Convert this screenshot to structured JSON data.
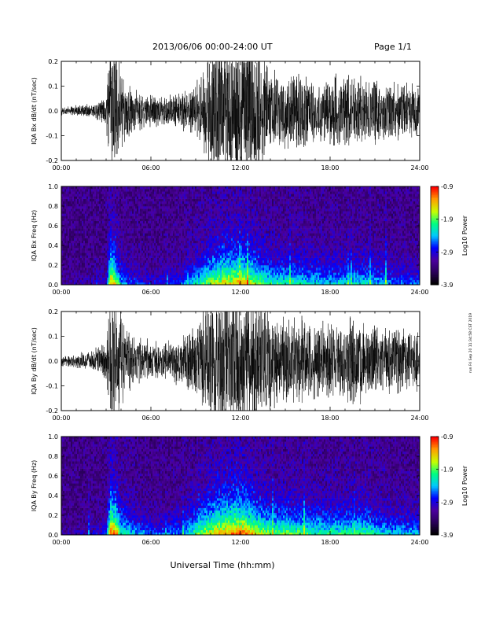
{
  "header": {
    "title": "2013/06/06  00:00-24:00 UT",
    "page": "Page 1/1"
  },
  "side_note": "run Fri Sep 20 11:34:58 CST 2019",
  "xlabel": "Universal Time (hh:mm)",
  "x_ticks": [
    "00:00",
    "06:00",
    "12:00",
    "18:00",
    "24:00"
  ],
  "colors": {
    "trace": "#000000",
    "colormap": [
      "#000000",
      "#2a005a",
      "#4b00a0",
      "#0000ff",
      "#00c8ff",
      "#00ff80",
      "#c8ff00",
      "#ffa000",
      "#ff0000"
    ]
  },
  "colorbar": {
    "label": "Log10 Power",
    "ticks": [
      "-0.9",
      "-1.9",
      "-2.9",
      "-3.9"
    ],
    "range": [
      -3.9,
      -0.9
    ]
  },
  "chart_data": [
    {
      "type": "line",
      "name": "panel-bx-wave",
      "ylabel": "IQA Bx dB/dt (nT/sec)",
      "y_ticks": [
        "0.2",
        "0.1",
        "0.0",
        "-0.1",
        "-0.2"
      ],
      "ylim": [
        -0.2,
        0.2
      ],
      "xlim_hours": [
        0,
        24
      ],
      "amplitude_envelope": {
        "hours": [
          0,
          1,
          2,
          3,
          3.3,
          3.6,
          4,
          4.5,
          5,
          6,
          7,
          8,
          9,
          9.5,
          10,
          11,
          12,
          13,
          14,
          14.5,
          15,
          16,
          17,
          18,
          19,
          20,
          21,
          22,
          23,
          24
        ],
        "amplitude": [
          0.012,
          0.015,
          0.02,
          0.04,
          0.2,
          0.2,
          0.12,
          0.08,
          0.06,
          0.045,
          0.04,
          0.05,
          0.08,
          0.12,
          0.2,
          0.2,
          0.2,
          0.2,
          0.14,
          0.1,
          0.1,
          0.12,
          0.09,
          0.1,
          0.1,
          0.1,
          0.09,
          0.08,
          0.08,
          0.07
        ]
      }
    },
    {
      "type": "heatmap",
      "name": "panel-bx-spec",
      "ylabel": "IQA Bx Freq (Hz)",
      "y_ticks": [
        "1.0",
        "0.8",
        "0.6",
        "0.4",
        "0.2",
        "0.0"
      ],
      "ylim": [
        0,
        1.0
      ],
      "xlim_hours": [
        0,
        24
      ],
      "activity": {
        "hours": [
          0,
          2,
          3,
          3.3,
          3.6,
          4,
          5,
          6,
          8,
          9,
          10,
          11,
          12,
          13,
          14,
          15,
          16,
          18,
          20,
          22,
          24
        ],
        "level": [
          0.05,
          0.1,
          0.2,
          0.9,
          0.8,
          0.4,
          0.25,
          0.2,
          0.3,
          0.5,
          0.7,
          0.8,
          0.85,
          0.7,
          0.55,
          0.55,
          0.5,
          0.45,
          0.5,
          0.35,
          0.3
        ]
      }
    },
    {
      "type": "line",
      "name": "panel-by-wave",
      "ylabel": "IQA By dB/dt (nT/sec)",
      "y_ticks": [
        "0.2",
        "0.1",
        "0.0",
        "-0.1",
        "-0.2"
      ],
      "ylim": [
        -0.2,
        0.2
      ],
      "xlim_hours": [
        0,
        24
      ],
      "amplitude_envelope": {
        "hours": [
          0,
          1,
          2,
          3,
          3.3,
          3.6,
          4,
          4.5,
          5,
          6,
          7,
          8,
          9,
          9.5,
          10,
          11,
          12,
          13,
          14,
          14.5,
          15,
          16,
          17,
          18,
          19,
          20,
          21,
          22,
          23,
          24
        ],
        "amplitude": [
          0.015,
          0.02,
          0.03,
          0.05,
          0.2,
          0.2,
          0.14,
          0.09,
          0.07,
          0.06,
          0.05,
          0.07,
          0.1,
          0.14,
          0.2,
          0.2,
          0.2,
          0.2,
          0.15,
          0.12,
          0.13,
          0.12,
          0.11,
          0.11,
          0.12,
          0.12,
          0.11,
          0.1,
          0.1,
          0.09
        ]
      }
    },
    {
      "type": "heatmap",
      "name": "panel-by-spec",
      "ylabel": "IQA By Freq (Hz)",
      "y_ticks": [
        "1.0",
        "0.8",
        "0.6",
        "0.4",
        "0.2",
        "0.0"
      ],
      "ylim": [
        0,
        1.0
      ],
      "xlim_hours": [
        0,
        24
      ],
      "activity": {
        "hours": [
          0,
          2,
          3,
          3.3,
          3.6,
          4,
          5,
          6,
          8,
          9,
          10,
          11,
          12,
          13,
          14,
          15,
          16,
          18,
          20,
          22,
          24
        ],
        "level": [
          0.06,
          0.12,
          0.25,
          1.0,
          0.9,
          0.55,
          0.4,
          0.3,
          0.35,
          0.6,
          0.8,
          0.9,
          0.95,
          0.8,
          0.65,
          0.65,
          0.6,
          0.55,
          0.6,
          0.45,
          0.4
        ]
      }
    }
  ]
}
